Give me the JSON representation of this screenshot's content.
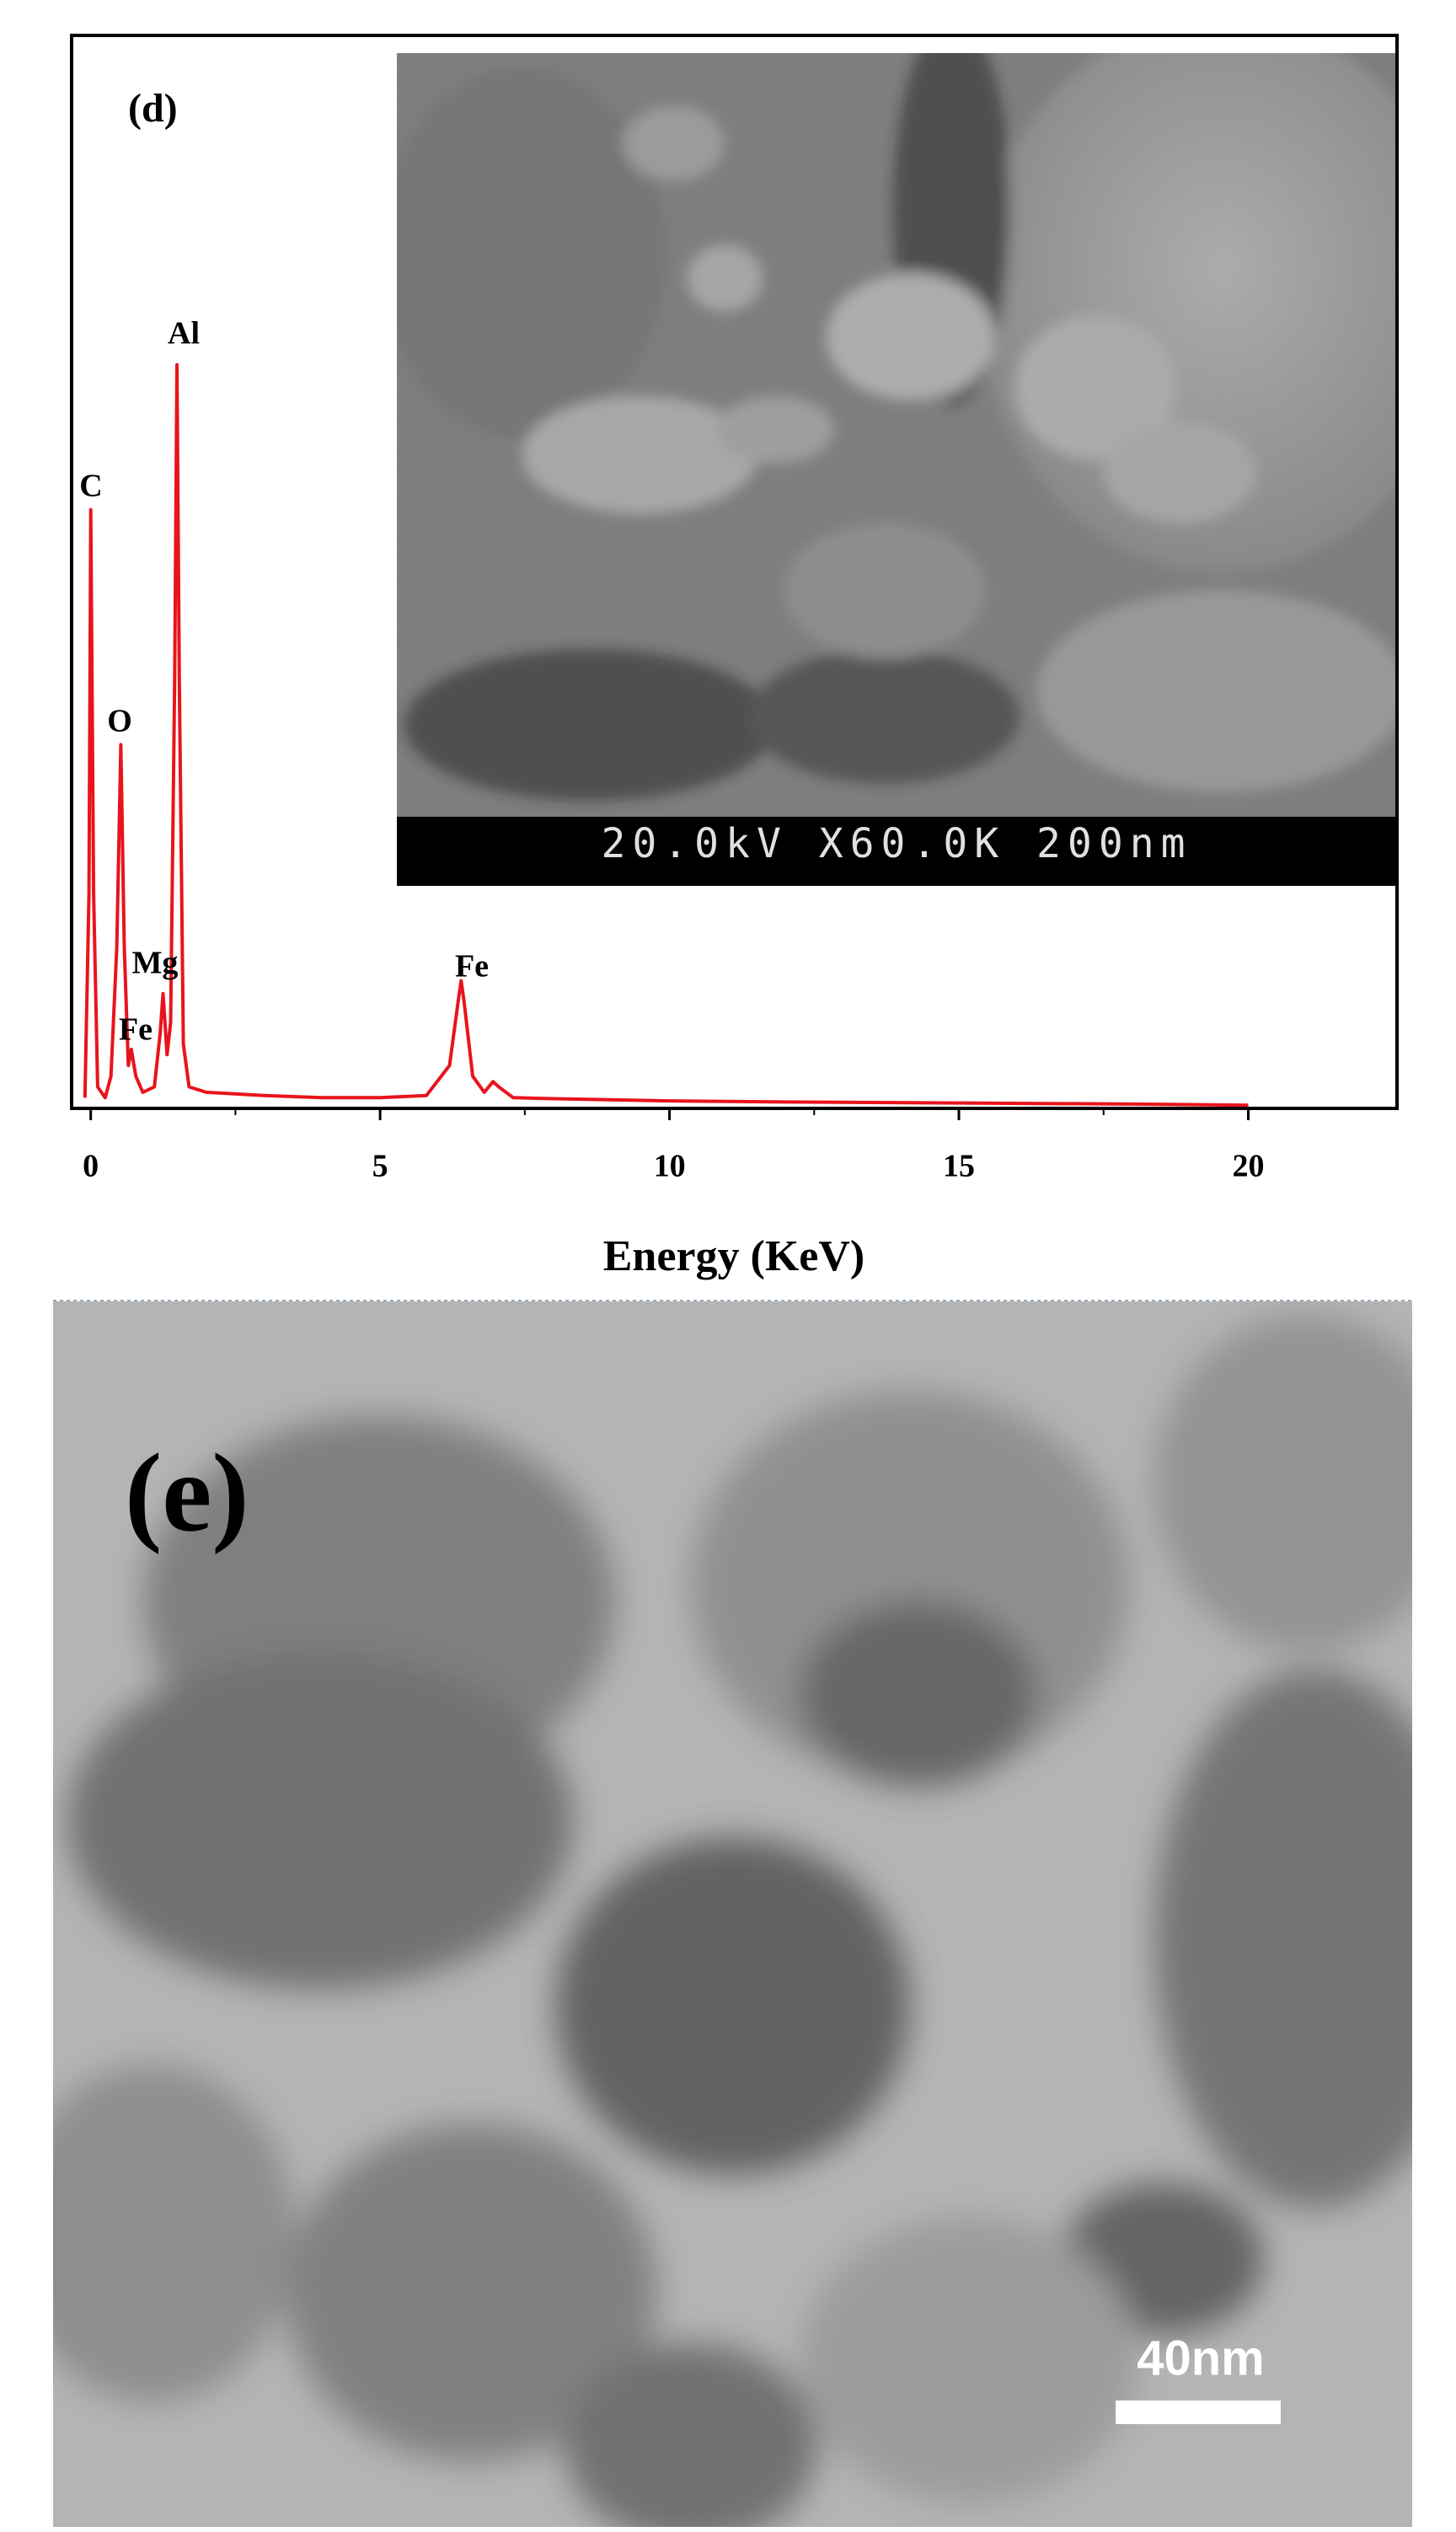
{
  "chart_data": {
    "type": "line",
    "panel_label": "(d)",
    "xlabel": "Energy (KeV)",
    "x": [
      -0.1,
      -0.03,
      0,
      0.05,
      0.12,
      0.25,
      0.35,
      0.45,
      0.52,
      0.58,
      0.65,
      0.7,
      0.78,
      0.9,
      1.1,
      1.2,
      1.25,
      1.32,
      1.38,
      1.45,
      1.49,
      1.53,
      1.6,
      1.7,
      2,
      3,
      4,
      5,
      5.8,
      6.2,
      6.35,
      6.4,
      6.45,
      6.6,
      6.8,
      6.95,
      7.05,
      7.3,
      8,
      10,
      12,
      15,
      18,
      20
    ],
    "values": [
      1,
      20,
      55.8,
      20,
      2,
      1,
      3,
      15,
      33.9,
      15,
      4,
      5.5,
      3,
      1.5,
      2,
      7,
      10.7,
      5,
      8,
      40,
      69.3,
      40,
      6,
      2,
      1.5,
      1.2,
      1.0,
      1.0,
      1.2,
      4,
      10,
      11.9,
      10,
      3,
      1.5,
      2.5,
      2,
      1,
      0.9,
      0.7,
      0.6,
      0.5,
      0.4,
      0.3
    ],
    "color": "#e8141c",
    "xlim": [
      -0.33,
      22.57
    ],
    "xticks": [
      0,
      5,
      10,
      15,
      20
    ],
    "ylim": [
      0,
      100
    ],
    "grid": false,
    "annotations": [
      "Al",
      "C",
      "O",
      "Mg",
      "Fe",
      "Fe"
    ]
  },
  "sem_inset": {
    "label": "20.0kV X60.0K 200nm"
  },
  "tem_image": {
    "panel_label": "(e)",
    "scale_bar": "40nm"
  }
}
